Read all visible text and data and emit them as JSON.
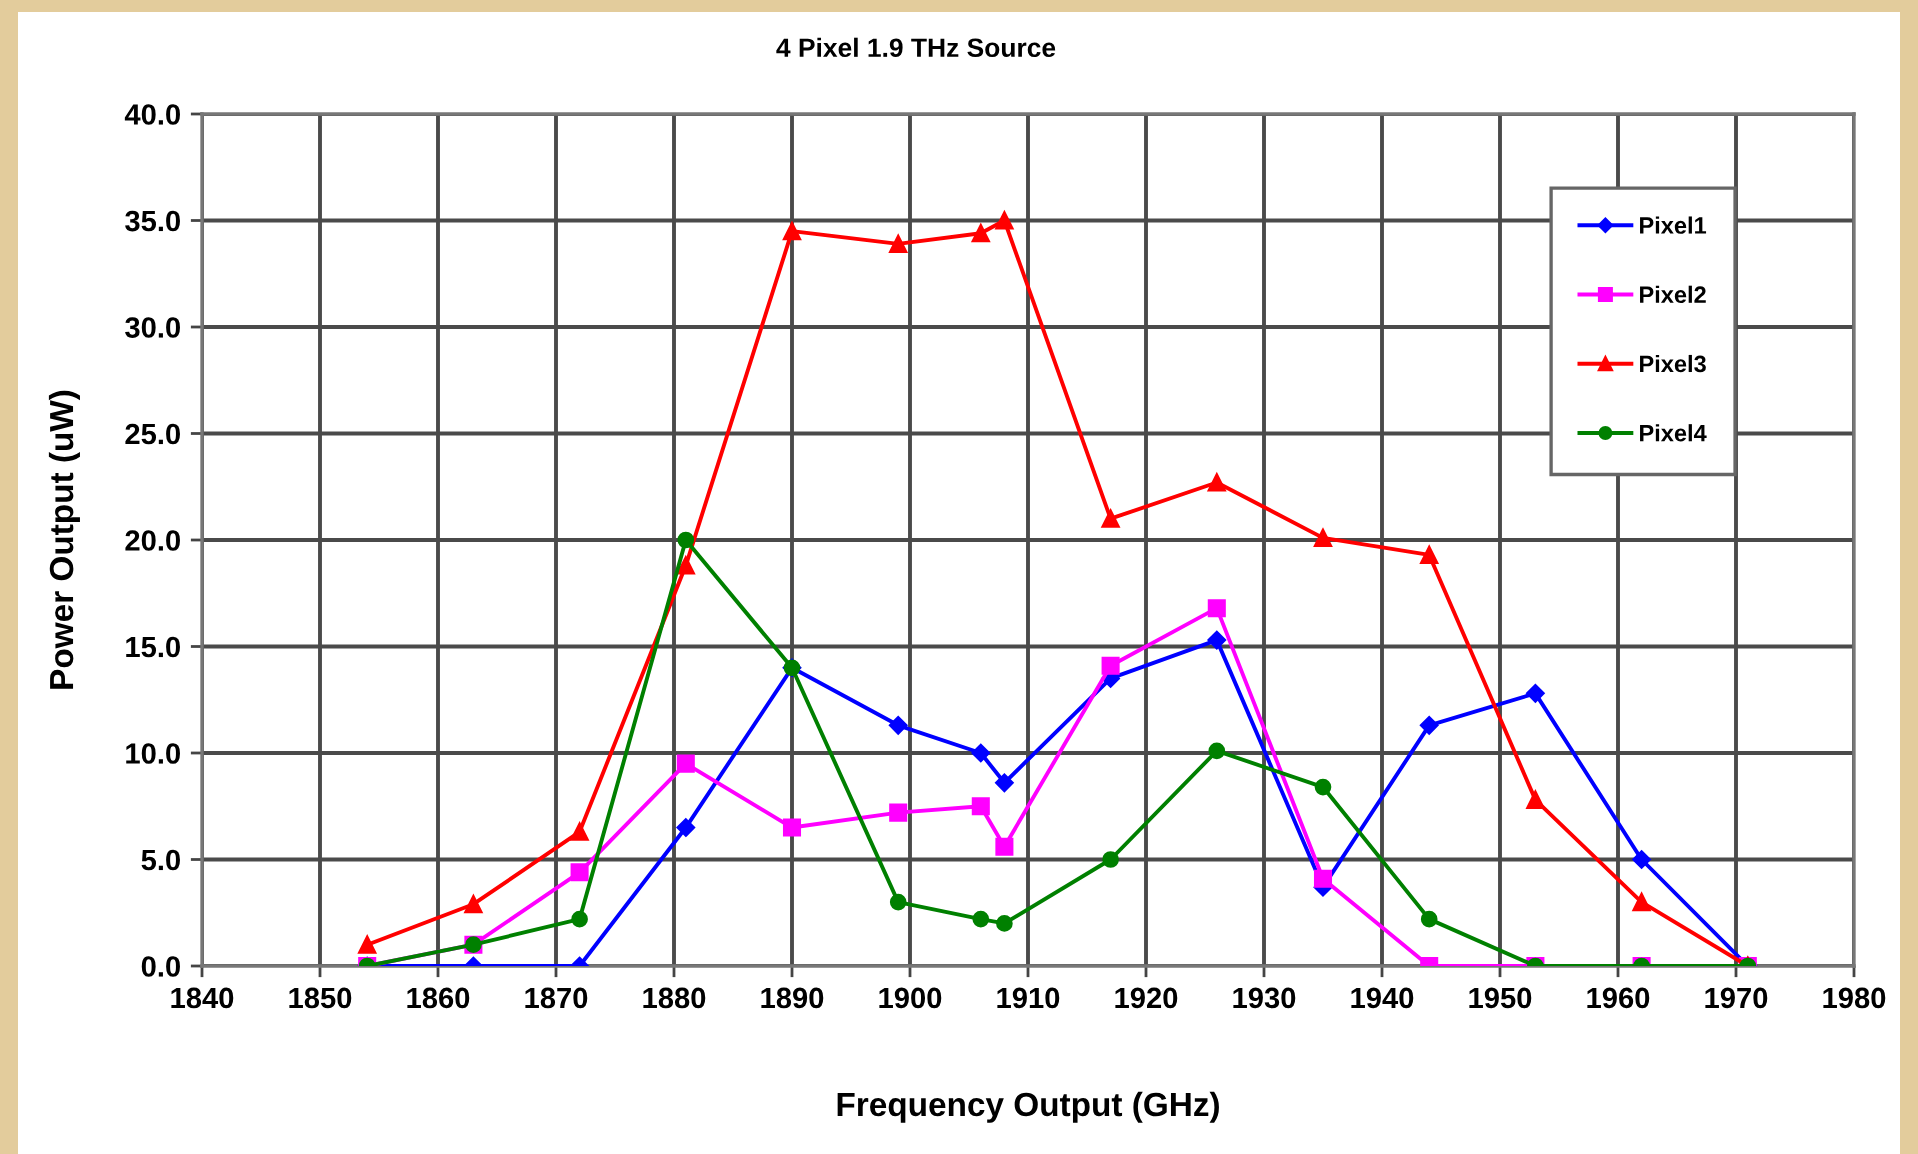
{
  "chart_data": {
    "type": "line",
    "title": "4 Pixel 1.9 THz Source",
    "xlabel": "Frequency Output (GHz)",
    "ylabel": "Power Output (uW)",
    "x": [
      1854,
      1863,
      1872,
      1881,
      1890,
      1899,
      1906,
      1908,
      1917,
      1926,
      1935,
      1944,
      1953,
      1962,
      1971
    ],
    "series": [
      {
        "name": "Pixel1",
        "color": "#0000ff",
        "marker": "diamond",
        "values": [
          0,
          0,
          0,
          6.5,
          14.0,
          11.3,
          10.0,
          8.6,
          13.5,
          15.3,
          3.7,
          11.3,
          12.8,
          5.0,
          0
        ]
      },
      {
        "name": "Pixel2",
        "color": "#ff00ff",
        "marker": "square",
        "values": [
          0,
          1.0,
          4.4,
          9.5,
          6.5,
          7.2,
          7.5,
          5.6,
          14.1,
          16.8,
          4.1,
          0,
          0,
          0,
          0
        ]
      },
      {
        "name": "Pixel3",
        "color": "#ff0000",
        "marker": "triangle",
        "values": [
          1.0,
          2.9,
          6.3,
          18.8,
          34.5,
          33.9,
          34.4,
          35.0,
          21.0,
          22.7,
          20.1,
          19.3,
          7.8,
          3.0,
          0
        ]
      },
      {
        "name": "Pixel4",
        "color": "#008000",
        "marker": "circle",
        "values": [
          0,
          1.0,
          2.2,
          20.0,
          14.0,
          3.0,
          2.2,
          2.0,
          5.0,
          10.1,
          8.4,
          2.2,
          0,
          0,
          0
        ]
      }
    ],
    "xlim": [
      1840,
      1980
    ],
    "xticks": [
      1840,
      1850,
      1860,
      1870,
      1880,
      1890,
      1900,
      1910,
      1920,
      1930,
      1940,
      1950,
      1960,
      1970,
      1980
    ],
    "ylim": [
      0,
      40
    ],
    "yticks": [
      {
        "value": 0,
        "label": "0.0"
      },
      {
        "value": 5,
        "label": "5.0"
      },
      {
        "value": 10,
        "label": "10.0"
      },
      {
        "value": 15,
        "label": "15.0"
      },
      {
        "value": 20,
        "label": "20.0"
      },
      {
        "value": 25,
        "label": "25.0"
      },
      {
        "value": 30,
        "label": "30.0"
      },
      {
        "value": 35,
        "label": "35.0"
      },
      {
        "value": 40,
        "label": "40.0"
      }
    ],
    "grid": true,
    "legend": "top right",
    "line_style": "solid"
  }
}
